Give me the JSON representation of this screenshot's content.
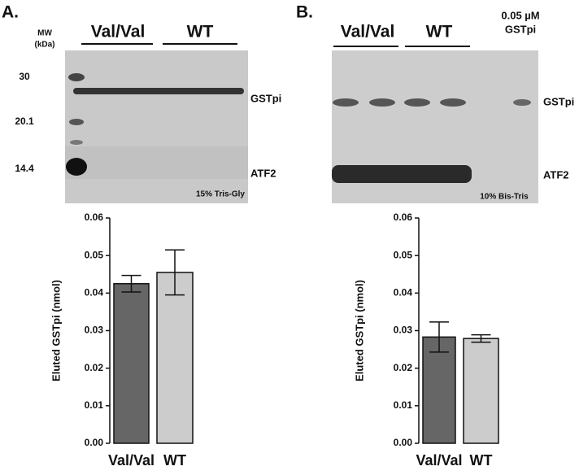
{
  "panels": [
    {
      "label": "A.",
      "mw_header": [
        "MW",
        "(kDa)"
      ],
      "markers": [
        "30",
        "20.1",
        "14.4"
      ],
      "groups": [
        "Val/Val",
        "WT"
      ],
      "bands": [
        "GSTpi",
        "ATF2"
      ],
      "gel_note": "15% Tris-Gly"
    },
    {
      "label": "B.",
      "groups": [
        "Val/Val",
        "WT"
      ],
      "standard": [
        "0.05 µM",
        "GSTpi"
      ],
      "bands": [
        "GSTpi",
        "ATF2"
      ],
      "gel_note": "10% Bis-Tris"
    }
  ],
  "chart_data": [
    {
      "type": "bar",
      "y_label": "Eluted GSTpi (nmol)",
      "categories": [
        "Val/Val",
        "WT"
      ],
      "values": [
        0.0425,
        0.0455
      ],
      "errors": [
        0.0022,
        0.006
      ],
      "colors": [
        "#666666",
        "#cccccc"
      ],
      "ylim": [
        0,
        0.06
      ],
      "yticks": [
        {
          "value": 0,
          "label": "0.00"
        },
        {
          "value": 0.01,
          "label": "0.01"
        },
        {
          "value": 0.02,
          "label": "0.02"
        },
        {
          "value": 0.03,
          "label": "0.03"
        },
        {
          "value": 0.04,
          "label": "0.04"
        },
        {
          "value": 0.05,
          "label": "0.05"
        },
        {
          "value": 0.06,
          "label": "0.06"
        }
      ]
    },
    {
      "type": "bar",
      "y_label": "Eluted GSTpi (nmol)",
      "categories": [
        "Val/Val",
        "WT"
      ],
      "values": [
        0.0283,
        0.0279
      ],
      "errors": [
        0.004,
        0.001
      ],
      "colors": [
        "#666666",
        "#cccccc"
      ],
      "ylim": [
        0,
        0.06
      ],
      "yticks": [
        {
          "value": 0,
          "label": "0.00"
        },
        {
          "value": 0.01,
          "label": "0.01"
        },
        {
          "value": 0.02,
          "label": "0.02"
        },
        {
          "value": 0.03,
          "label": "0.03"
        },
        {
          "value": 0.04,
          "label": "0.04"
        },
        {
          "value": 0.05,
          "label": "0.05"
        },
        {
          "value": 0.06,
          "label": "0.06"
        }
      ]
    }
  ]
}
